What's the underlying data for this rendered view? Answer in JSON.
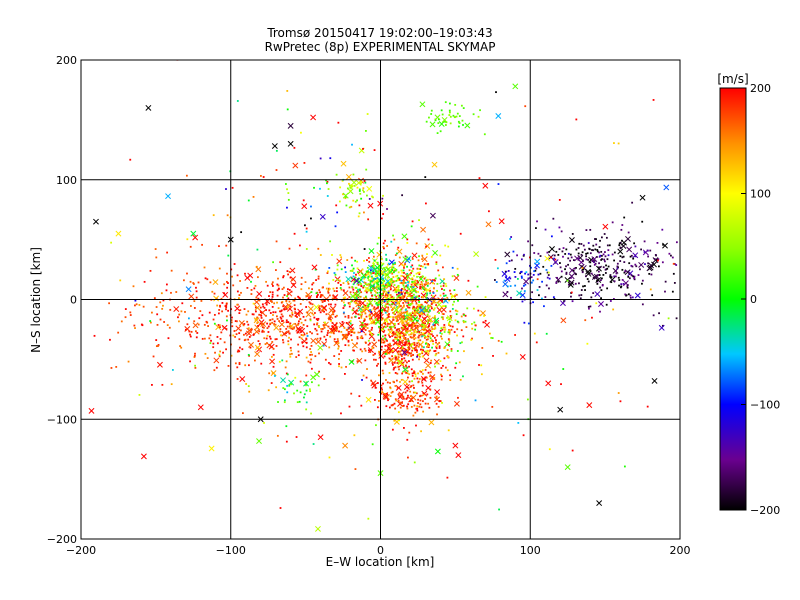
{
  "chart_data": {
    "type": "scatter",
    "title": "Tromsø 20150417 19:02:00–19:03:43",
    "subtitle": "RwPretec (8p) EXPERIMENTAL SKYMAP",
    "xlabel": "E–W location [km]",
    "ylabel": "N–S location [km]",
    "xlim": [
      -200,
      200
    ],
    "ylim": [
      -200,
      200
    ],
    "xticks": [
      -200,
      -100,
      0,
      100,
      200
    ],
    "yticks": [
      -200,
      -100,
      0,
      100,
      200
    ],
    "grid": true,
    "colorbar": {
      "label": "[m/s]",
      "range": [
        -200,
        200
      ],
      "ticks": [
        200,
        100,
        0,
        -100,
        -200
      ],
      "colormap": "black-purple-blue-cyan-green-yellow-red"
    },
    "clusters": [
      {
        "cx": -35,
        "cy": -15,
        "sx": 45,
        "sy": 20,
        "n": 900,
        "value": 185,
        "vspread": 25
      },
      {
        "cx": -110,
        "cy": -20,
        "sx": 35,
        "sy": 25,
        "n": 160,
        "value": 180,
        "vspread": 20
      },
      {
        "cx": 18,
        "cy": -30,
        "sx": 14,
        "sy": 28,
        "n": 650,
        "value": 175,
        "vspread": 35
      },
      {
        "cx": 10,
        "cy": 5,
        "sx": 18,
        "sy": 16,
        "n": 500,
        "value": 60,
        "vspread": 80
      },
      {
        "cx": 0,
        "cy": 18,
        "sx": 12,
        "sy": 6,
        "n": 120,
        "value": 20,
        "vspread": 40
      },
      {
        "cx": 35,
        "cy": -25,
        "sx": 14,
        "sy": 15,
        "n": 160,
        "value": 90,
        "vspread": 60
      },
      {
        "cx": 150,
        "cy": 28,
        "sx": 25,
        "sy": 16,
        "n": 350,
        "value": -180,
        "vspread": 25
      },
      {
        "cx": 100,
        "cy": 18,
        "sx": 12,
        "sy": 14,
        "n": 70,
        "value": -110,
        "vspread": 40
      },
      {
        "cx": 48,
        "cy": 152,
        "sx": 9,
        "sy": 7,
        "n": 45,
        "value": 30,
        "vspread": 10
      },
      {
        "cx": -18,
        "cy": 92,
        "sx": 6,
        "sy": 7,
        "n": 45,
        "value": 70,
        "vspread": 40
      },
      {
        "cx": -55,
        "cy": -75,
        "sx": 8,
        "sy": 8,
        "n": 30,
        "value": 20,
        "vspread": 30
      },
      {
        "cx": 20,
        "cy": -82,
        "sx": 12,
        "sy": 7,
        "n": 70,
        "value": 185,
        "vspread": 20
      },
      {
        "cx": -30,
        "cy": 80,
        "sx": 40,
        "sy": 40,
        "n": 80,
        "value": 0,
        "vspread": 200
      },
      {
        "cx": 0,
        "cy": 0,
        "sx": 110,
        "sy": 80,
        "n": 220,
        "value": 100,
        "vspread": 120
      }
    ],
    "markers": [
      {
        "x": -193,
        "y": -93,
        "v": 200
      },
      {
        "x": -190,
        "y": 65,
        "v": -200
      },
      {
        "x": -175,
        "y": 55,
        "v": 110
      },
      {
        "x": -155,
        "y": 160,
        "v": -200
      },
      {
        "x": -158,
        "y": -131,
        "v": 200
      },
      {
        "x": -125,
        "y": 55,
        "v": -10
      },
      {
        "x": -120,
        "y": -90,
        "v": 200
      },
      {
        "x": -100,
        "y": 50,
        "v": -200
      },
      {
        "x": -80,
        "y": -100,
        "v": -200
      },
      {
        "x": -60,
        "y": 130,
        "v": -200
      },
      {
        "x": -45,
        "y": 152,
        "v": 200
      },
      {
        "x": -60,
        "y": 145,
        "v": -180
      },
      {
        "x": -45,
        "y": -65,
        "v": 30
      },
      {
        "x": -40,
        "y": -115,
        "v": 200
      },
      {
        "x": 28,
        "y": 163,
        "v": 30
      },
      {
        "x": 90,
        "y": 178,
        "v": 30
      },
      {
        "x": 120,
        "y": -92,
        "v": -200
      },
      {
        "x": 146,
        "y": -170,
        "v": -200
      },
      {
        "x": 125,
        "y": -140,
        "v": 30
      },
      {
        "x": 183,
        "y": -68,
        "v": -200
      },
      {
        "x": 50,
        "y": -122,
        "v": 200
      },
      {
        "x": 52,
        "y": -130,
        "v": 200
      },
      {
        "x": 0,
        "y": -145,
        "v": 30
      },
      {
        "x": 95,
        "y": -48,
        "v": 200
      },
      {
        "x": 112,
        "y": -70,
        "v": 200
      },
      {
        "x": 190,
        "y": 45,
        "v": -200
      },
      {
        "x": 175,
        "y": 85,
        "v": -200
      },
      {
        "x": -87,
        "y": 20,
        "v": 200
      },
      {
        "x": 35,
        "y": 70,
        "v": -170
      },
      {
        "x": 70,
        "y": 95,
        "v": 200
      }
    ]
  }
}
